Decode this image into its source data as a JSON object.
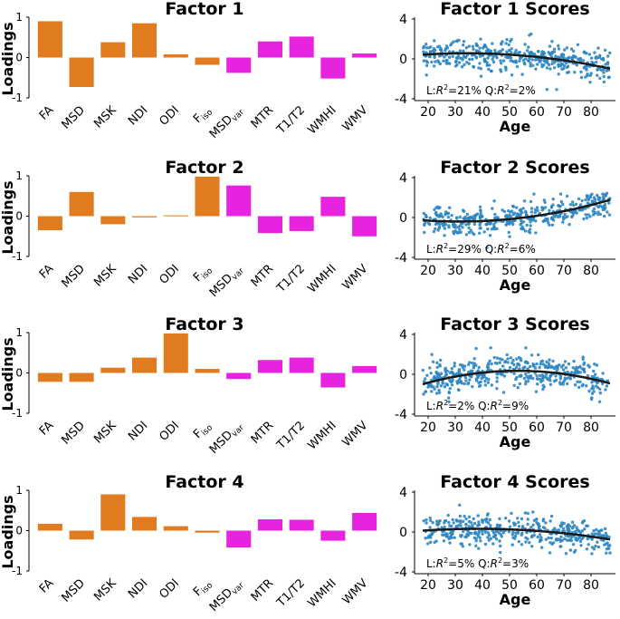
{
  "chart_data": [
    {
      "type": "bar",
      "title": "Factor 1",
      "ylabel": "Loadings",
      "ylim": [
        -1,
        1
      ],
      "yticks": [
        "1",
        "0",
        "-1"
      ],
      "categories": [
        {
          "main": "FA",
          "sub": ""
        },
        {
          "main": "MSD",
          "sub": ""
        },
        {
          "main": "MSK",
          "sub": ""
        },
        {
          "main": "NDI",
          "sub": ""
        },
        {
          "main": "ODI",
          "sub": ""
        },
        {
          "main": "F",
          "sub": "iso"
        },
        {
          "main": "MSD",
          "sub": "var"
        },
        {
          "main": "MTR",
          "sub": ""
        },
        {
          "main": "T1/T2",
          "sub": ""
        },
        {
          "main": "WMHI",
          "sub": ""
        },
        {
          "main": "WMV",
          "sub": ""
        }
      ],
      "values": [
        0.9,
        -0.73,
        0.38,
        0.85,
        0.08,
        -0.18,
        -0.38,
        0.4,
        0.52,
        -0.52,
        0.1
      ],
      "colors": [
        "#e07b1f",
        "#e07b1f",
        "#e07b1f",
        "#e07b1f",
        "#e07b1f",
        "#e07b1f",
        "#e624e0",
        "#e624e0",
        "#e624e0",
        "#e624e0",
        "#e624e0"
      ]
    },
    {
      "type": "scatter",
      "title": "Factor 1 Scores",
      "xlabel": "Age",
      "ylim": [
        -4,
        4
      ],
      "yticks": [
        "4",
        "0",
        "-4"
      ],
      "xticks": [
        "20",
        "30",
        "40",
        "50",
        "60",
        "70",
        "80"
      ],
      "xlim": [
        15,
        89
      ],
      "annotation": {
        "l_label": "L:",
        "l_r2": "R",
        "l_val": "=21%",
        "q_label": "Q:",
        "q_r2": "R",
        "q_val": "=2%",
        "sup": "2"
      },
      "trend": {
        "a": 0.5,
        "b": -0.012,
        "c": -0.00055,
        "center": 45
      },
      "noise": 0.75,
      "point_color": "#2e86c1",
      "line_color": "#1a1a1a"
    },
    {
      "type": "bar",
      "title": "Factor 2",
      "ylabel": "Loadings",
      "ylim": [
        -1,
        1
      ],
      "yticks": [
        "1",
        "0",
        "-1"
      ],
      "categories": [
        {
          "main": "FA",
          "sub": ""
        },
        {
          "main": "MSD",
          "sub": ""
        },
        {
          "main": "MSK",
          "sub": ""
        },
        {
          "main": "NDI",
          "sub": ""
        },
        {
          "main": "ODI",
          "sub": ""
        },
        {
          "main": "F",
          "sub": "iso"
        },
        {
          "main": "MSD",
          "sub": "var"
        },
        {
          "main": "MTR",
          "sub": ""
        },
        {
          "main": "T1/T2",
          "sub": ""
        },
        {
          "main": "WMHI",
          "sub": ""
        },
        {
          "main": "WMV",
          "sub": ""
        }
      ],
      "values": [
        -0.35,
        0.6,
        -0.2,
        -0.03,
        0.02,
        0.98,
        0.76,
        -0.42,
        -0.37,
        0.48,
        -0.5
      ],
      "colors": [
        "#e07b1f",
        "#e07b1f",
        "#e07b1f",
        "#e07b1f",
        "#e07b1f",
        "#e07b1f",
        "#e624e0",
        "#e624e0",
        "#e624e0",
        "#e624e0",
        "#e624e0"
      ]
    },
    {
      "type": "scatter",
      "title": "Factor 2 Scores",
      "xlabel": "Age",
      "ylim": [
        -4,
        4
      ],
      "yticks": [
        "4",
        "0",
        "-4"
      ],
      "xticks": [
        "20",
        "30",
        "40",
        "50",
        "60",
        "70",
        "80"
      ],
      "xlim": [
        15,
        89
      ],
      "annotation": {
        "l_label": "L:",
        "l_r2": "R",
        "l_val": "=29%",
        "q_label": "Q:",
        "q_r2": "R",
        "q_val": "=6%",
        "sup": "2"
      },
      "trend": {
        "a": -0.35,
        "b": 0.012,
        "c": 0.0007,
        "center": 40
      },
      "noise": 0.7,
      "point_color": "#2e86c1",
      "line_color": "#1a1a1a"
    },
    {
      "type": "bar",
      "title": "Factor 3",
      "ylabel": "Loadings",
      "ylim": [
        -1,
        1
      ],
      "yticks": [
        "1",
        "0",
        "-1"
      ],
      "categories": [
        {
          "main": "FA",
          "sub": ""
        },
        {
          "main": "MSD",
          "sub": ""
        },
        {
          "main": "MSK",
          "sub": ""
        },
        {
          "main": "NDI",
          "sub": ""
        },
        {
          "main": "ODI",
          "sub": ""
        },
        {
          "main": "F",
          "sub": "iso"
        },
        {
          "main": "MSD",
          "sub": "var"
        },
        {
          "main": "MTR",
          "sub": ""
        },
        {
          "main": "T1/T2",
          "sub": ""
        },
        {
          "main": "WMHI",
          "sub": ""
        },
        {
          "main": "WMV",
          "sub": ""
        }
      ],
      "values": [
        -0.22,
        -0.22,
        0.13,
        0.38,
        0.98,
        0.1,
        -0.15,
        0.32,
        0.38,
        -0.36,
        0.17
      ],
      "colors": [
        "#e07b1f",
        "#e07b1f",
        "#e07b1f",
        "#e07b1f",
        "#e07b1f",
        "#e07b1f",
        "#e624e0",
        "#e624e0",
        "#e624e0",
        "#e624e0",
        "#e624e0"
      ]
    },
    {
      "type": "scatter",
      "title": "Factor 3 Scores",
      "xlabel": "Age",
      "ylim": [
        -4,
        4
      ],
      "yticks": [
        "4",
        "0",
        "-4"
      ],
      "xticks": [
        "20",
        "30",
        "40",
        "50",
        "60",
        "70",
        "80"
      ],
      "xlim": [
        15,
        89
      ],
      "annotation": {
        "l_label": "L:",
        "l_r2": "R",
        "l_val": "=2%",
        "q_label": "Q:",
        "q_r2": "R",
        "q_val": "=9%",
        "sup": "2"
      },
      "trend": {
        "a": 0.35,
        "b": 0.0,
        "c": -0.0011,
        "center": 53
      },
      "noise": 0.8,
      "point_color": "#2e86c1",
      "line_color": "#1a1a1a"
    },
    {
      "type": "bar",
      "title": "Factor 4",
      "ylabel": "Loadings",
      "ylim": [
        -1,
        1
      ],
      "yticks": [
        "1",
        "0",
        "-1"
      ],
      "categories": [
        {
          "main": "FA",
          "sub": ""
        },
        {
          "main": "MSD",
          "sub": ""
        },
        {
          "main": "MSK",
          "sub": ""
        },
        {
          "main": "NDI",
          "sub": ""
        },
        {
          "main": "ODI",
          "sub": ""
        },
        {
          "main": "F",
          "sub": "iso"
        },
        {
          "main": "MSD",
          "sub": "var"
        },
        {
          "main": "MTR",
          "sub": ""
        },
        {
          "main": "T1/T2",
          "sub": ""
        },
        {
          "main": "WMHI",
          "sub": ""
        },
        {
          "main": "WMV",
          "sub": ""
        }
      ],
      "values": [
        0.17,
        -0.22,
        0.9,
        0.34,
        0.11,
        -0.05,
        -0.42,
        0.28,
        0.27,
        -0.25,
        0.44
      ],
      "colors": [
        "#e07b1f",
        "#e07b1f",
        "#e07b1f",
        "#e07b1f",
        "#e07b1f",
        "#e07b1f",
        "#e624e0",
        "#e624e0",
        "#e624e0",
        "#e624e0",
        "#e624e0"
      ]
    },
    {
      "type": "scatter",
      "title": "Factor 4 Scores",
      "xlabel": "Age",
      "ylim": [
        -4,
        4
      ],
      "yticks": [
        "4",
        "0",
        "-4"
      ],
      "xticks": [
        "20",
        "30",
        "40",
        "50",
        "60",
        "70",
        "80"
      ],
      "xlim": [
        15,
        89
      ],
      "annotation": {
        "l_label": "L:",
        "l_r2": "R",
        "l_val": "=5%",
        "q_label": "Q:",
        "q_r2": "R",
        "q_val": "=3%",
        "sup": "2"
      },
      "trend": {
        "a": 0.3,
        "b": -0.006,
        "c": -0.00045,
        "center": 45
      },
      "noise": 0.75,
      "point_color": "#2e86c1",
      "line_color": "#1a1a1a"
    }
  ]
}
